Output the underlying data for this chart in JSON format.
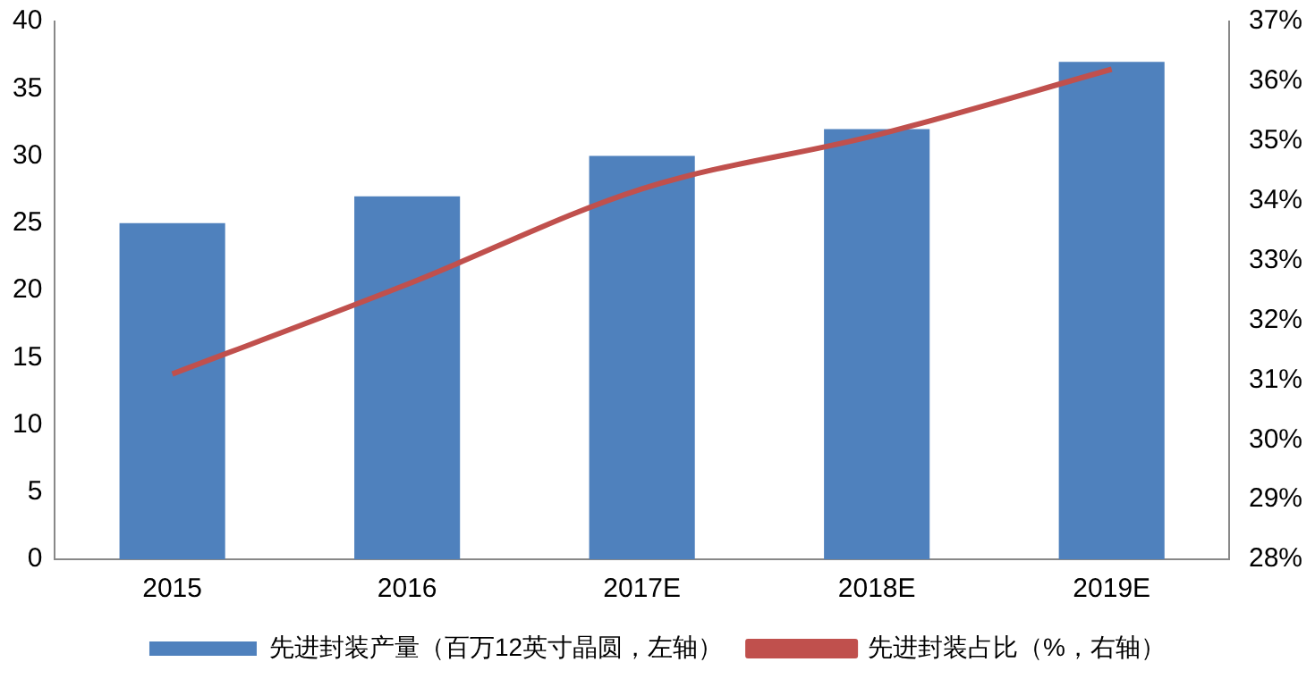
{
  "chart_data": {
    "type": "bar",
    "categories": [
      "2015",
      "2016",
      "2017E",
      "2018E",
      "2019E"
    ],
    "series": [
      {
        "name": "先进封装产量（百万12英寸晶圆，左轴）",
        "color": "#4f81bd",
        "values": [
          25,
          27,
          30,
          32,
          37
        ]
      },
      {
        "name": "先进封装占比（%，右轴）",
        "type": "line",
        "axis": "y2",
        "color": "#c0504d",
        "values": [
          31.1,
          32.6,
          34.2,
          35.1,
          36.2
        ]
      }
    ],
    "ylim": [
      0,
      40
    ],
    "yticks": [
      0,
      5,
      10,
      15,
      20,
      25,
      30,
      35,
      40
    ],
    "y2lim": [
      28,
      37
    ],
    "y2ticks": [
      {
        "value": 28,
        "label": "28%"
      },
      {
        "value": 29,
        "label": "29%"
      },
      {
        "value": 30,
        "label": "30%"
      },
      {
        "value": 31,
        "label": "31%"
      },
      {
        "value": 32,
        "label": "32%"
      },
      {
        "value": 33,
        "label": "33%"
      },
      {
        "value": 34,
        "label": "34%"
      },
      {
        "value": 35,
        "label": "35%"
      },
      {
        "value": 36,
        "label": "36%"
      },
      {
        "value": 37,
        "label": "37%"
      }
    ],
    "grid": false,
    "legend": "bottom",
    "marker": "none",
    "line_style": "solid"
  }
}
